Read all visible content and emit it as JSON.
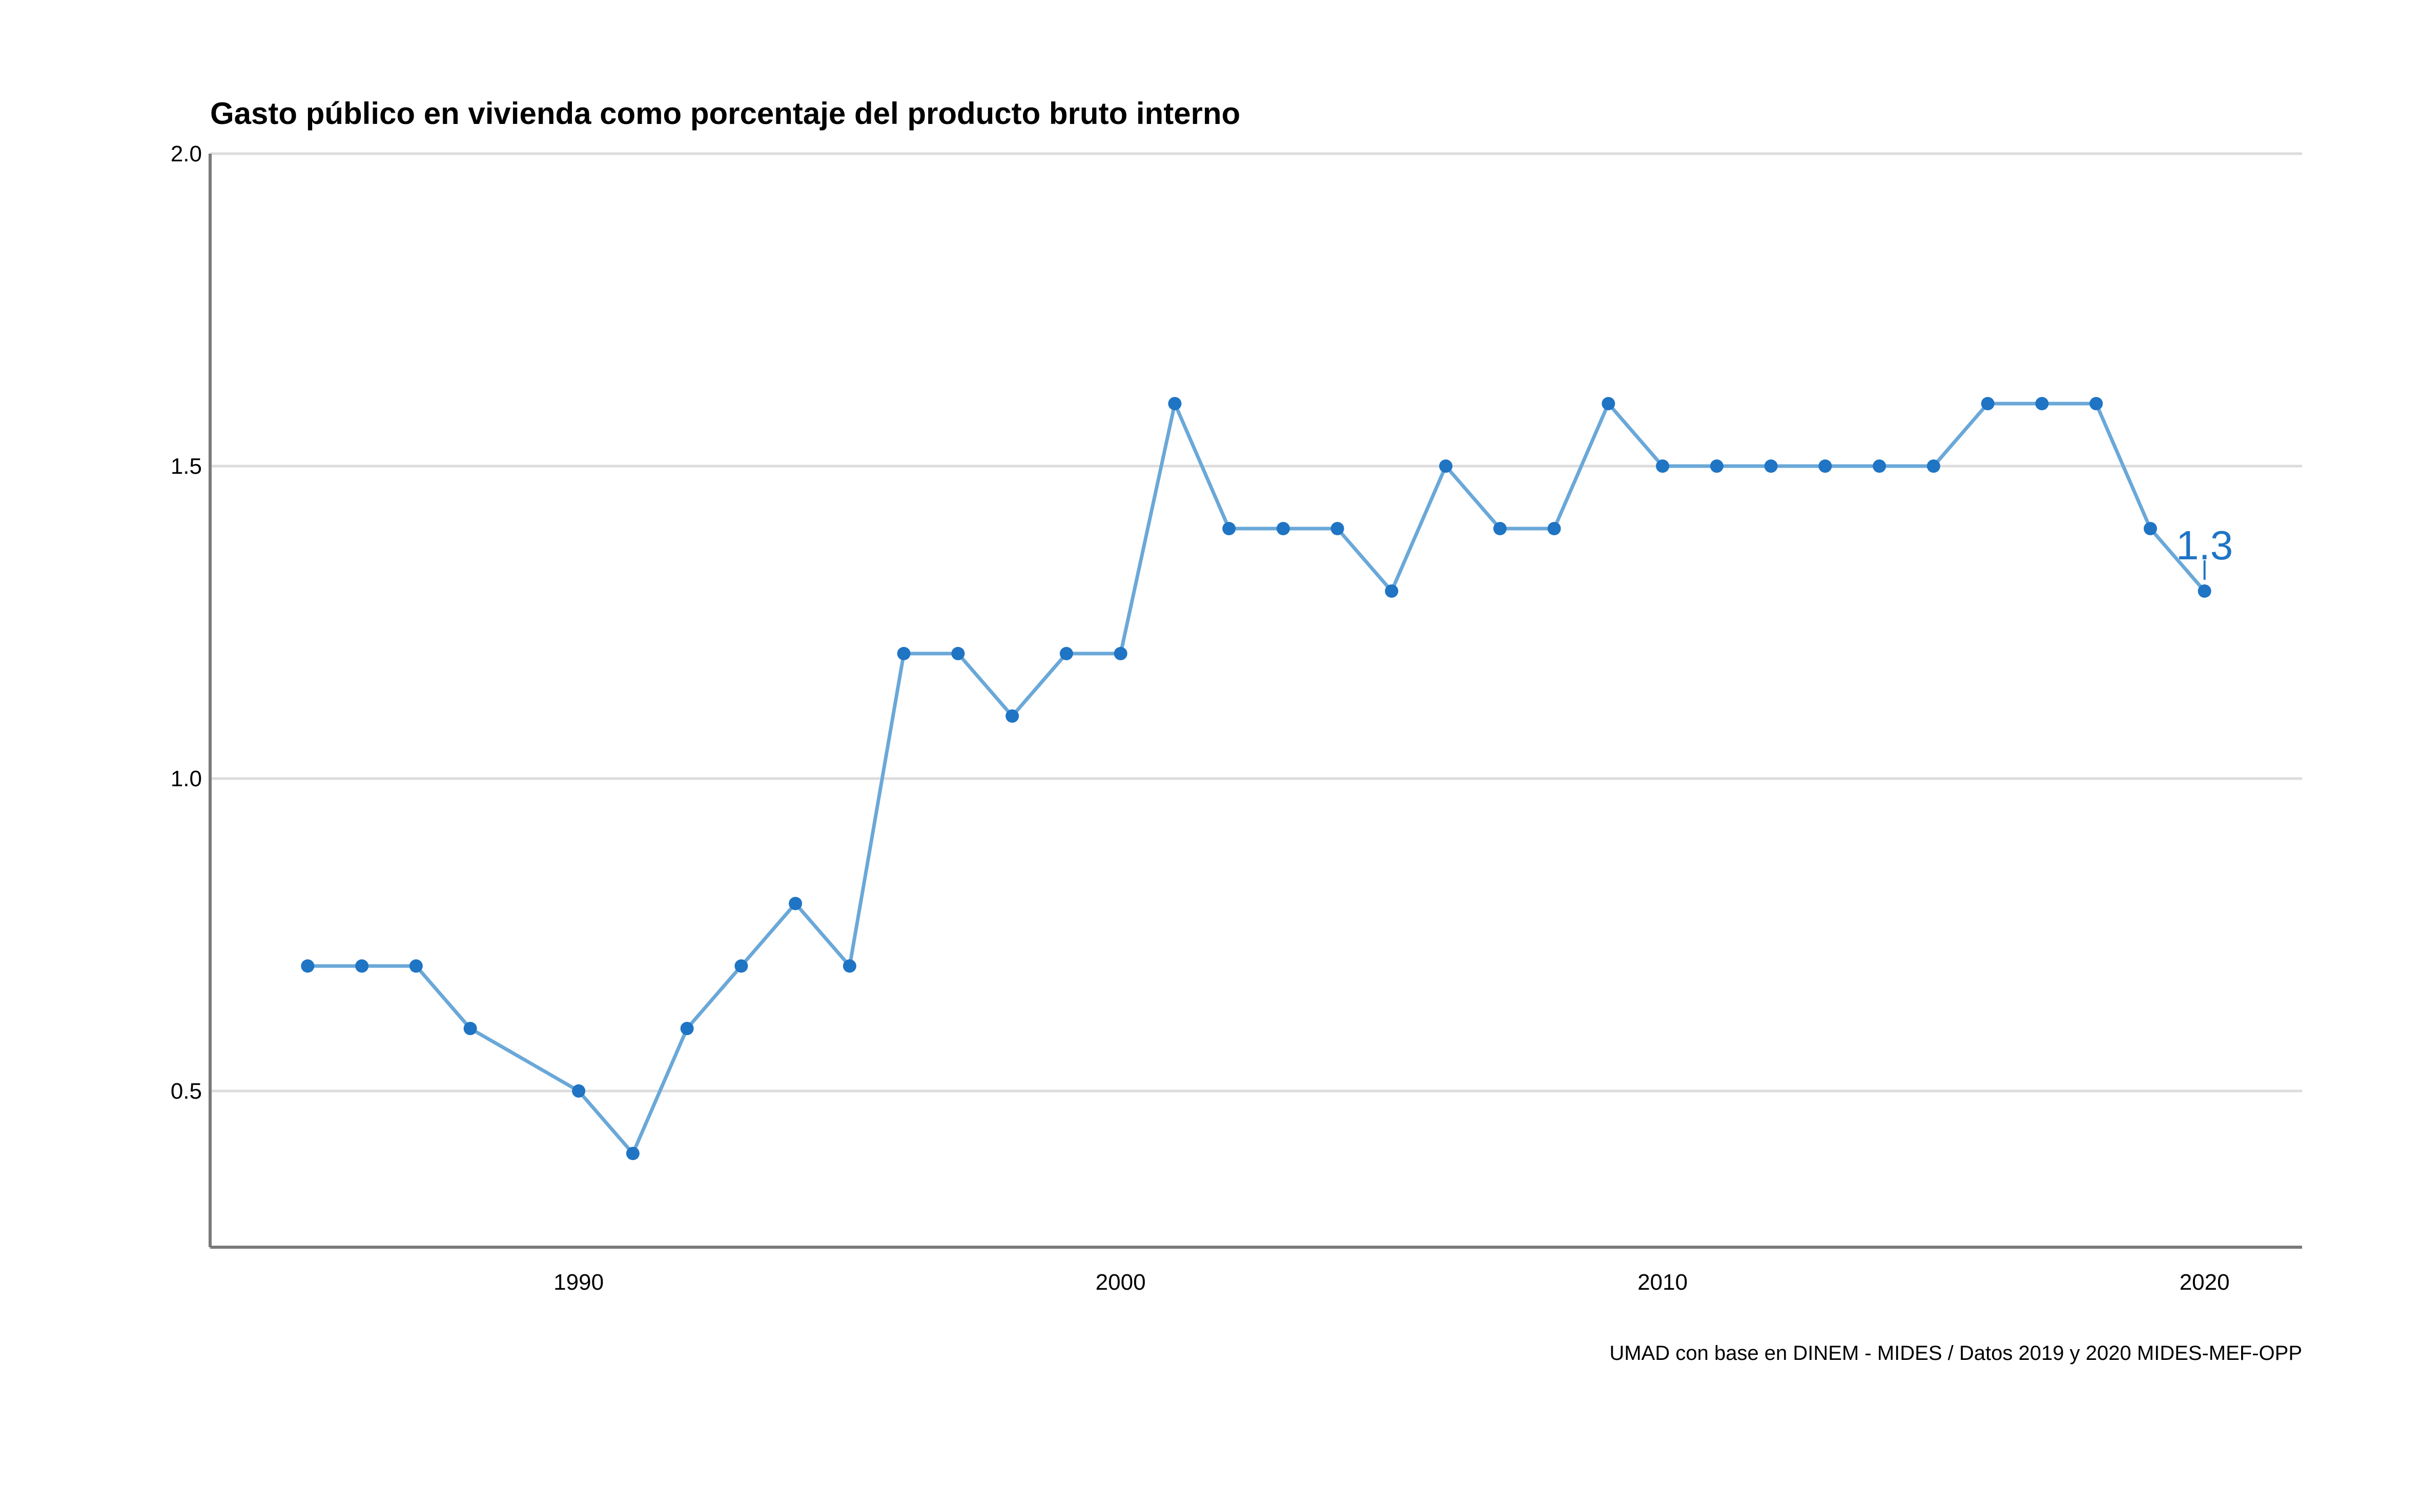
{
  "chart_data": {
    "type": "line",
    "title": "Gasto público en vivienda como porcentaje del producto bruto interno",
    "caption": "UMAD con base en DINEM - MIDES / Datos 2019 y 2020 MIDES-MEF-OPP",
    "xlabel": "",
    "ylabel": "",
    "xlim": [
      1983.2,
      2021.8
    ],
    "ylim": [
      0.25,
      2.0
    ],
    "x_ticks": [
      1990,
      2000,
      2010,
      2020
    ],
    "y_ticks": [
      0.5,
      1.0,
      1.5,
      2.0
    ],
    "y_tick_labels": [
      "0.5",
      "1.0",
      "1.5",
      "2.0"
    ],
    "grid": "horizontal",
    "series": [
      {
        "x": [
          1985,
          1986,
          1987,
          1988,
          1990,
          1991,
          1992,
          1993,
          1994,
          1995,
          1996,
          1997,
          1998,
          1999,
          2000,
          2001,
          2002,
          2003,
          2004,
          2005,
          2006,
          2007,
          2008,
          2009,
          2010,
          2011,
          2012,
          2013,
          2014,
          2015,
          2016,
          2017,
          2018,
          2019,
          2020
        ],
        "y": [
          0.7,
          0.7,
          0.7,
          0.6,
          0.5,
          0.4,
          0.6,
          0.7,
          0.8,
          0.7,
          1.2,
          1.2,
          1.1,
          1.2,
          1.2,
          1.6,
          1.4,
          1.4,
          1.4,
          1.3,
          1.5,
          1.4,
          1.4,
          1.6,
          1.5,
          1.5,
          1.5,
          1.5,
          1.5,
          1.5,
          1.6,
          1.6,
          1.6,
          1.4,
          1.3
        ]
      }
    ],
    "annotation": {
      "x": 2020,
      "y": 1.3,
      "text": "1.3"
    },
    "colors": {
      "line": "#6aa8d8",
      "point": "#1f74c4",
      "annotation": "#1f74c4",
      "grid": "#dcdcdc",
      "axis": "#7a7a7a"
    }
  }
}
